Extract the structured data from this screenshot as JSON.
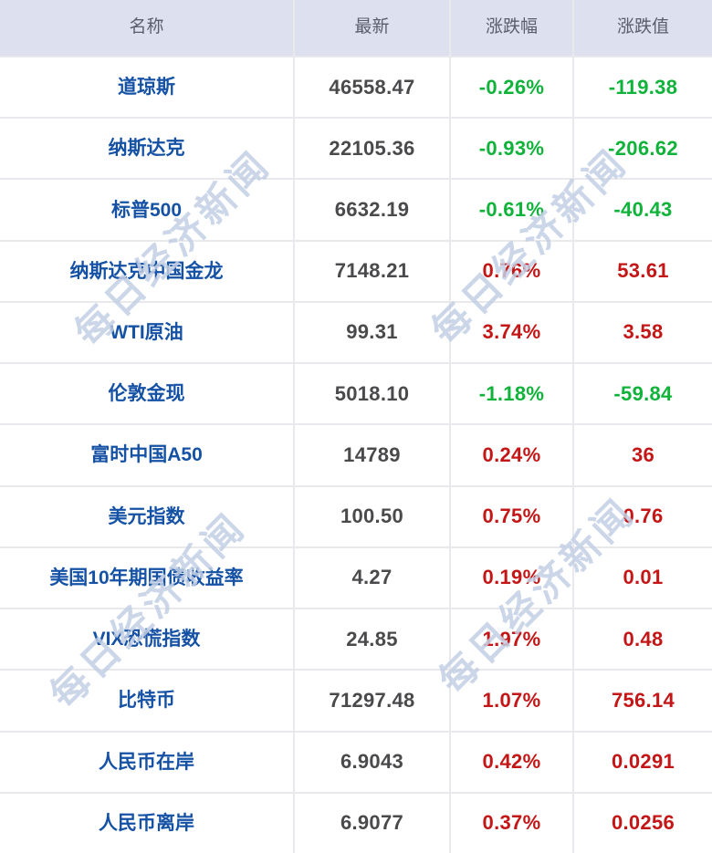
{
  "watermark": {
    "text": "每日经济新闻"
  },
  "colors": {
    "up_red": "#c41616",
    "down_green": "#0fb33a",
    "name_blue": "#1552a5",
    "number_gray": "#4a4a4c",
    "header_bg": "#dde0ee",
    "header_text": "#5a5e6c",
    "watermark": "#c3cfe4"
  },
  "table": {
    "headers": {
      "name": "名称",
      "latest": "最新",
      "change_pct": "涨跌幅",
      "change_val": "涨跌值"
    },
    "rows": [
      {
        "name": "道琼斯",
        "latest": "46558.47",
        "change_pct": "-0.26%",
        "change_val": "-119.38",
        "direction": "down"
      },
      {
        "name": "纳斯达克",
        "latest": "22105.36",
        "change_pct": "-0.93%",
        "change_val": "-206.62",
        "direction": "down"
      },
      {
        "name": "标普500",
        "latest": "6632.19",
        "change_pct": "-0.61%",
        "change_val": "-40.43",
        "direction": "down"
      },
      {
        "name": "纳斯达克中国金龙",
        "latest": "7148.21",
        "change_pct": "0.76%",
        "change_val": "53.61",
        "direction": "up"
      },
      {
        "name": "WTI原油",
        "latest": "99.31",
        "change_pct": "3.74%",
        "change_val": "3.58",
        "direction": "up"
      },
      {
        "name": "伦敦金现",
        "latest": "5018.10",
        "change_pct": "-1.18%",
        "change_val": "-59.84",
        "direction": "down"
      },
      {
        "name": "富时中国A50",
        "latest": "14789",
        "change_pct": "0.24%",
        "change_val": "36",
        "direction": "up"
      },
      {
        "name": "美元指数",
        "latest": "100.50",
        "change_pct": "0.75%",
        "change_val": "0.76",
        "direction": "up"
      },
      {
        "name": "美国10年期国债收益率",
        "latest": "4.27",
        "change_pct": "0.19%",
        "change_val": "0.01",
        "direction": "up"
      },
      {
        "name": "VIX恐慌指数",
        "latest": "24.85",
        "change_pct": "1.97%",
        "change_val": "0.48",
        "direction": "up"
      },
      {
        "name": "比特币",
        "latest": "71297.48",
        "change_pct": "1.07%",
        "change_val": "756.14",
        "direction": "up"
      },
      {
        "name": "人民币在岸",
        "latest": "6.9043",
        "change_pct": "0.42%",
        "change_val": "0.0291",
        "direction": "up"
      },
      {
        "name": "人民币离岸",
        "latest": "6.9077",
        "change_pct": "0.37%",
        "change_val": "0.0256",
        "direction": "up"
      }
    ]
  }
}
